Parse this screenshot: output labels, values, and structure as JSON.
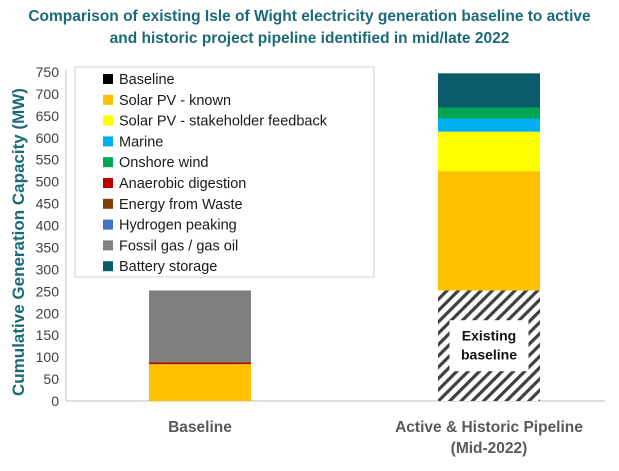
{
  "chart_data": {
    "type": "bar",
    "stacked": true,
    "title_lines": [
      "Comparison of existing Isle of Wight electricity generation baseline to active",
      "and historic project pipeline identified in mid/late 2022"
    ],
    "ylabel": "Cumulative Generation Capacity (MW)",
    "xlabel": "",
    "ylim": [
      0,
      750
    ],
    "yticks": [
      0,
      50,
      100,
      150,
      200,
      250,
      300,
      350,
      400,
      450,
      500,
      550,
      600,
      650,
      700,
      750
    ],
    "categories": [
      {
        "lines": [
          "Baseline"
        ]
      },
      {
        "lines": [
          "Active & Historic Pipeline",
          "(Mid-2022)"
        ]
      }
    ],
    "legend_position": "top-left",
    "grid": false,
    "series": [
      {
        "name": "Baseline",
        "color": "#000000",
        "values": [
          0,
          252
        ],
        "pattern": [
          false,
          true
        ]
      },
      {
        "name": "Solar PV - known",
        "color": "#ffc000",
        "values": [
          84,
          272
        ]
      },
      {
        "name": "Solar PV - stakeholder feedback",
        "color": "#ffff00",
        "values": [
          0,
          90
        ]
      },
      {
        "name": "Marine",
        "color": "#00b0f0",
        "values": [
          0,
          30
        ]
      },
      {
        "name": "Onshore wind",
        "color": "#00a651",
        "values": [
          0,
          25
        ]
      },
      {
        "name": "Anaerobic digestion",
        "color": "#c00000",
        "values": [
          3,
          0
        ]
      },
      {
        "name": "Energy from Waste",
        "color": "#843c0c",
        "values": [
          2,
          0
        ]
      },
      {
        "name": "Hydrogen peaking",
        "color": "#4472c4",
        "values": [
          0,
          0
        ]
      },
      {
        "name": "Fossil gas / gas oil",
        "color": "#808080",
        "values": [
          163,
          0
        ]
      },
      {
        "name": "Battery storage",
        "color": "#0b5c6b",
        "values": [
          0,
          78
        ]
      }
    ],
    "annotations": [
      {
        "category_index": 1,
        "lines": [
          "Existing",
          "baseline"
        ]
      }
    ]
  }
}
